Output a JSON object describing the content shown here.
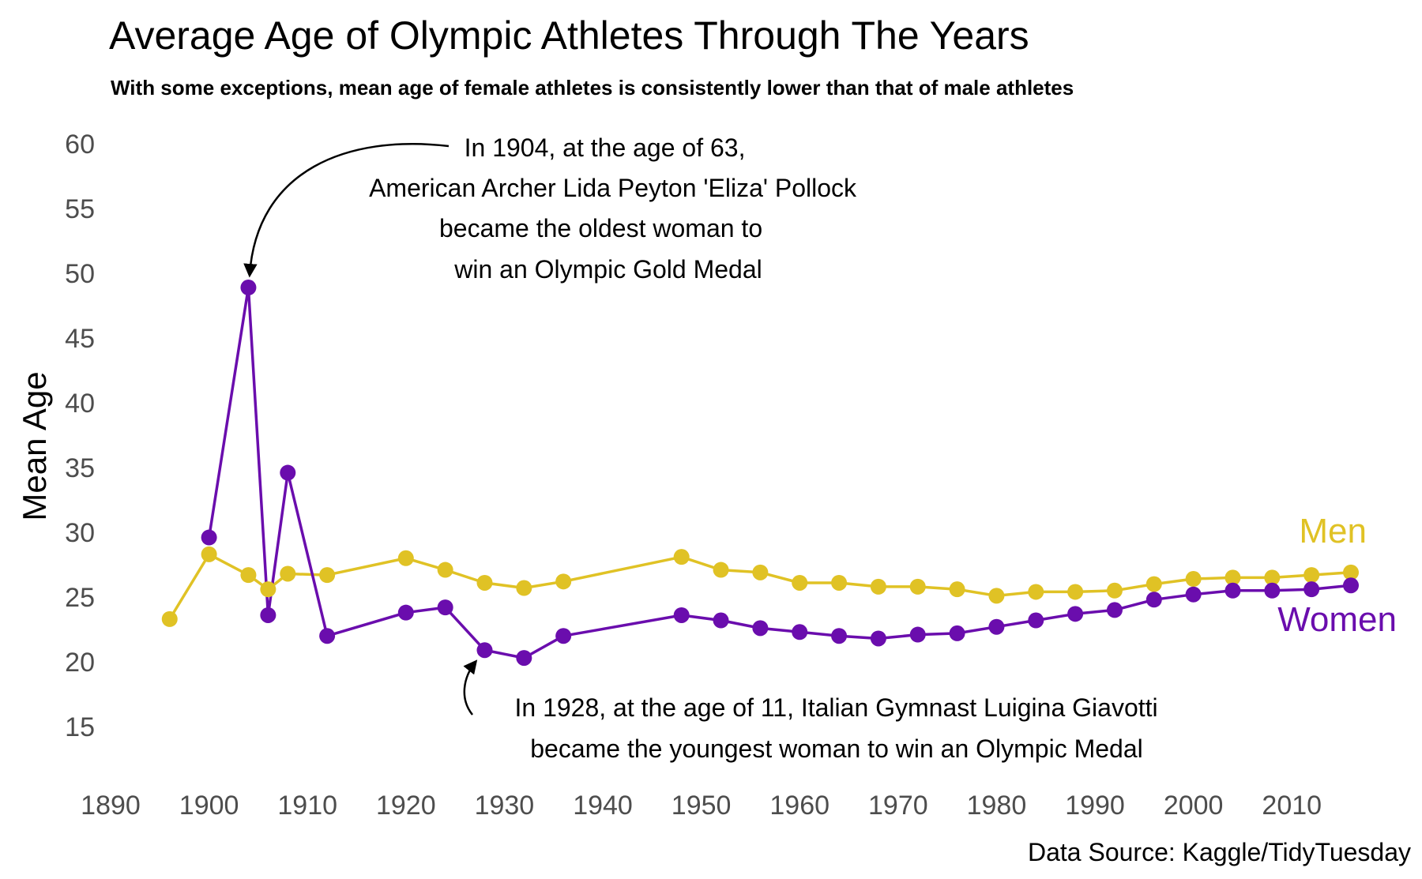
{
  "chart_data": {
    "type": "line",
    "title": "Average Age of Olympic Athletes Through The Years",
    "subtitle": "With some exceptions, mean age of female athletes is consistently lower than that of male athletes",
    "ylabel": "Mean Age",
    "xlabel": "",
    "caption": "Data Source: Kaggle/TidyTuesday",
    "xlim": [
      1890,
      2016
    ],
    "ylim": [
      15,
      60
    ],
    "x_ticks": [
      1890,
      1900,
      1910,
      1920,
      1930,
      1940,
      1950,
      1960,
      1970,
      1980,
      1990,
      2000,
      2010
    ],
    "y_ticks": [
      15,
      20,
      25,
      30,
      35,
      40,
      45,
      50,
      55,
      60
    ],
    "grid": false,
    "legend": "direct labels at right end of lines",
    "series": [
      {
        "name": "Men",
        "color": "#E0C225",
        "points": [
          [
            1896,
            23.3
          ],
          [
            1900,
            28.3
          ],
          [
            1904,
            26.7
          ],
          [
            1906,
            25.6
          ],
          [
            1908,
            26.8
          ],
          [
            1912,
            26.7
          ],
          [
            1920,
            28.0
          ],
          [
            1924,
            27.1
          ],
          [
            1928,
            26.1
          ],
          [
            1932,
            25.7
          ],
          [
            1936,
            26.2
          ],
          [
            1948,
            28.1
          ],
          [
            1952,
            27.1
          ],
          [
            1956,
            26.9
          ],
          [
            1960,
            26.1
          ],
          [
            1964,
            26.1
          ],
          [
            1968,
            25.8
          ],
          [
            1972,
            25.8
          ],
          [
            1976,
            25.6
          ],
          [
            1980,
            25.1
          ],
          [
            1984,
            25.4
          ],
          [
            1988,
            25.4
          ],
          [
            1992,
            25.5
          ],
          [
            1996,
            26.0
          ],
          [
            2000,
            26.4
          ],
          [
            2004,
            26.5
          ],
          [
            2008,
            26.5
          ],
          [
            2012,
            26.7
          ],
          [
            2016,
            26.9
          ]
        ]
      },
      {
        "name": "Women",
        "color": "#6A0DAD",
        "points": [
          [
            1900,
            29.6
          ],
          [
            1904,
            48.9
          ],
          [
            1906,
            23.6
          ],
          [
            1908,
            34.6
          ],
          [
            1912,
            22.0
          ],
          [
            1920,
            23.8
          ],
          [
            1924,
            24.2
          ],
          [
            1928,
            20.9
          ],
          [
            1932,
            20.3
          ],
          [
            1936,
            22.0
          ],
          [
            1948,
            23.6
          ],
          [
            1952,
            23.2
          ],
          [
            1956,
            22.6
          ],
          [
            1960,
            22.3
          ],
          [
            1964,
            22.0
          ],
          [
            1968,
            21.8
          ],
          [
            1972,
            22.1
          ],
          [
            1976,
            22.2
          ],
          [
            1980,
            22.7
          ],
          [
            1984,
            23.2
          ],
          [
            1988,
            23.7
          ],
          [
            1992,
            24.0
          ],
          [
            1996,
            24.8
          ],
          [
            2000,
            25.2
          ],
          [
            2004,
            25.5
          ],
          [
            2008,
            25.5
          ],
          [
            2012,
            25.6
          ],
          [
            2016,
            25.9
          ]
        ]
      }
    ],
    "annotations": [
      {
        "lines": [
          "In 1904, at the age of 63,",
          "American Archer Lida Peyton 'Eliza' Pollock",
          "became the oldest woman to",
          "win an Olympic Gold Medal"
        ],
        "target": [
          1904,
          48.9
        ]
      },
      {
        "lines": [
          "In 1928, at the age of 11, Italian Gymnast Luigina Giavotti",
          "became the youngest woman to win an Olympic Medal"
        ],
        "target": [
          1928,
          20.9
        ]
      }
    ]
  }
}
